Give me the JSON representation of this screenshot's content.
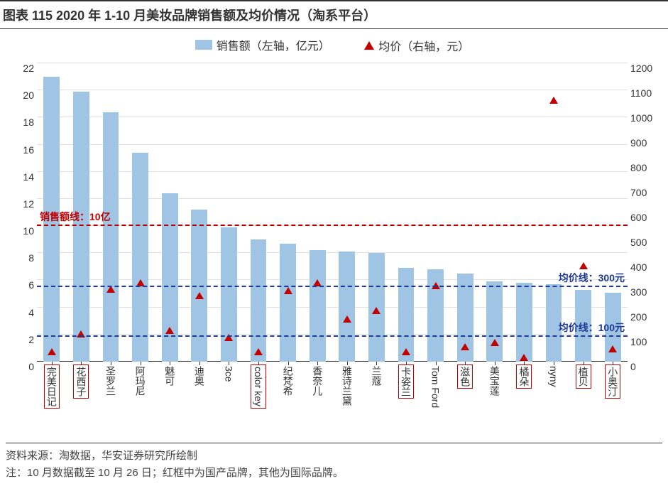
{
  "title": "图表 115 2020 年 1-10 月美妆品牌销售额及均价情况（淘系平台）",
  "legend": {
    "bar_label": "销售额（左轴，亿元）",
    "marker_label": "均价（右轴，元）"
  },
  "chart": {
    "type": "bar+scatter-dual-axis",
    "background_color": "#ffffff",
    "bar_color": "#a0c4e4",
    "marker_color": "#c00000",
    "grid_color": "#e0e0e0",
    "axis_text_color": "#333333",
    "left_axis": {
      "min": 0,
      "max": 22,
      "step": 2
    },
    "right_axis": {
      "min": 0,
      "max": 1200,
      "step": 100
    },
    "bar_width_ratio": 0.55,
    "categories": [
      {
        "label": "完美日记",
        "is_domestic": true,
        "sales": 21.0,
        "price": 70
      },
      {
        "label": "花西子",
        "is_domestic": true,
        "sales": 19.9,
        "price": 140
      },
      {
        "label": "圣罗兰",
        "is_domestic": false,
        "sales": 18.4,
        "price": 320
      },
      {
        "label": "阿玛尼",
        "is_domestic": false,
        "sales": 15.4,
        "price": 345
      },
      {
        "label": "魅可",
        "is_domestic": false,
        "sales": 12.4,
        "price": 155
      },
      {
        "label": "迪奥",
        "is_domestic": false,
        "sales": 11.2,
        "price": 295
      },
      {
        "label": "3ce",
        "is_domestic": false,
        "sales": 9.9,
        "price": 125
      },
      {
        "label": "color key",
        "is_domestic": true,
        "sales": 9.0,
        "price": 70
      },
      {
        "label": "纪梵希",
        "is_domestic": false,
        "sales": 8.7,
        "price": 315
      },
      {
        "label": "香奈儿",
        "is_domestic": false,
        "sales": 8.2,
        "price": 345
      },
      {
        "label": "雅诗兰黛",
        "is_domestic": false,
        "sales": 8.1,
        "price": 200
      },
      {
        "label": "兰蔻",
        "is_domestic": false,
        "sales": 8.0,
        "price": 235
      },
      {
        "label": "卡姿兰",
        "is_domestic": true,
        "sales": 6.9,
        "price": 70
      },
      {
        "label": "Tom Ford",
        "is_domestic": false,
        "sales": 6.8,
        "price": 335
      },
      {
        "label": "滋色",
        "is_domestic": true,
        "sales": 6.5,
        "price": 90
      },
      {
        "label": "美宝莲",
        "is_domestic": false,
        "sales": 5.9,
        "price": 105
      },
      {
        "label": "橘朵",
        "is_domestic": true,
        "sales": 5.8,
        "price": 45
      },
      {
        "label": "nyny",
        "is_domestic": false,
        "sales": 5.7,
        "price": 1080
      },
      {
        "label": "植贝",
        "is_domestic": true,
        "sales": 5.3,
        "price": 415
      },
      {
        "label": "小奥汀",
        "is_domestic": true,
        "sales": 5.1,
        "price": 80
      }
    ],
    "reference_lines": [
      {
        "axis": "left",
        "value": 10,
        "color": "#c00000",
        "label": "销售额线：10亿",
        "label_pos": "top-left"
      },
      {
        "axis": "right",
        "value": 300,
        "color": "#1f3a93",
        "label": "均价线：300元",
        "label_pos": "right"
      },
      {
        "axis": "right",
        "value": 100,
        "color": "#1f3a93",
        "label": "均价线：100元",
        "label_pos": "right"
      }
    ]
  },
  "footer": {
    "source": "资料来源：淘数据，华安证券研究所绘制",
    "note": "注：10 月数据截至 10 月 26 日；红框中为国产品牌，其他为国际品牌。"
  }
}
